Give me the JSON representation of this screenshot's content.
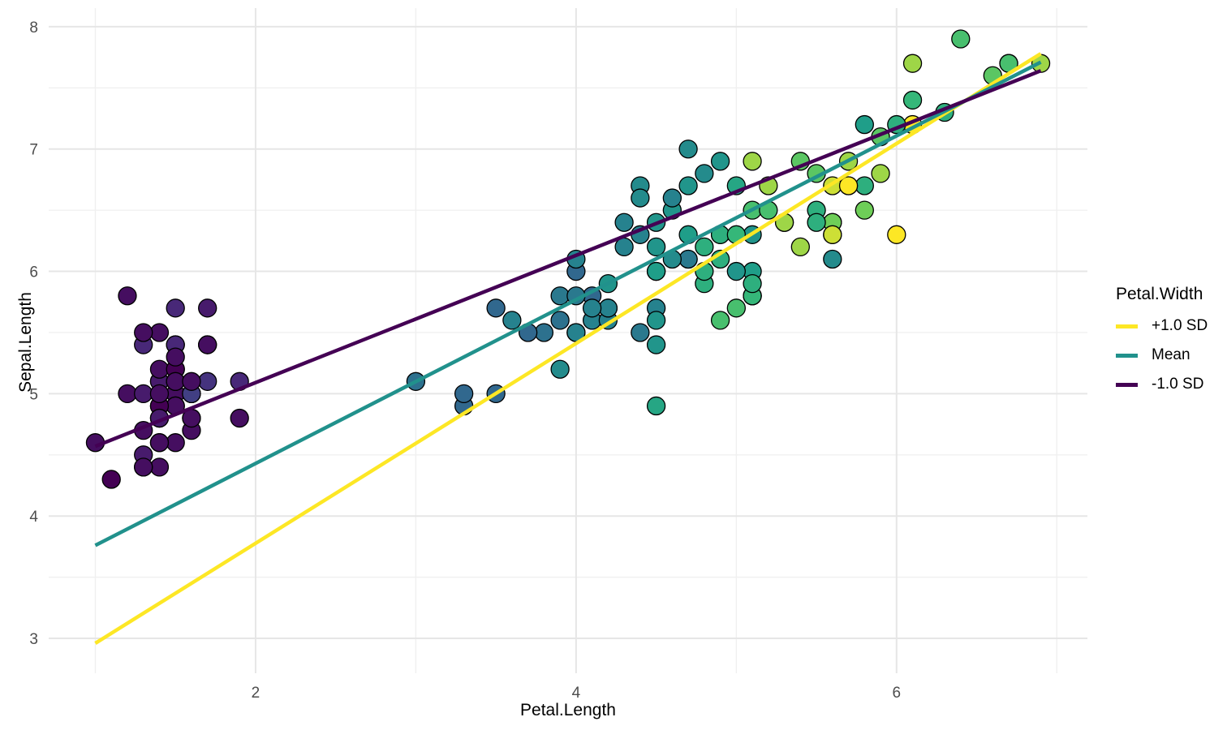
{
  "chart_data": {
    "type": "scatter",
    "title": "",
    "xlabel": "Petal.Length",
    "ylabel": "Sepal.Length",
    "xlim": [
      0.709,
      7.191
    ],
    "ylim": [
      2.715,
      8.152
    ],
    "x_ticks": [
      2,
      4,
      6
    ],
    "y_ticks": [
      3,
      4,
      5,
      6,
      7,
      8
    ],
    "x_minor_ticks": [
      1,
      3,
      5,
      7
    ],
    "y_minor_ticks": [
      3.5,
      4.5,
      5.5,
      6.5,
      7.5
    ],
    "grid": true,
    "legend": {
      "title": "Petal.Width",
      "position": "right",
      "entries": [
        {
          "label": "+1.0 SD",
          "color": "#fde725"
        },
        {
          "label": "Mean",
          "color": "#21918c"
        },
        {
          "label": "-1.0 SD",
          "color": "#440154"
        }
      ]
    },
    "color_scale": {
      "name": "viridis",
      "variable": "Petal.Width",
      "domain": [
        0.1,
        2.5
      ],
      "stops": [
        "#440154",
        "#482878",
        "#3e4a89",
        "#31688e",
        "#26828e",
        "#1f9e89",
        "#35b779",
        "#6ece58",
        "#fde725"
      ]
    },
    "trend_lines": [
      {
        "name": "+1.0 SD",
        "color": "#fde725",
        "x": [
          1.0,
          6.9
        ],
        "y": [
          2.96,
          7.78
        ]
      },
      {
        "name": "Mean",
        "color": "#21918c",
        "x": [
          1.0,
          6.9
        ],
        "y": [
          3.76,
          7.71
        ]
      },
      {
        "name": "-1.0 SD",
        "color": "#440154",
        "x": [
          1.0,
          6.9
        ],
        "y": [
          4.57,
          7.64
        ]
      }
    ],
    "points_columns": [
      "Petal.Length",
      "Sepal.Length",
      "Petal.Width"
    ],
    "points": [
      [
        1.4,
        5.1,
        0.2
      ],
      [
        1.4,
        4.9,
        0.2
      ],
      [
        1.3,
        4.7,
        0.2
      ],
      [
        1.5,
        4.6,
        0.2
      ],
      [
        1.4,
        5.0,
        0.2
      ],
      [
        1.7,
        5.4,
        0.4
      ],
      [
        1.4,
        4.6,
        0.3
      ],
      [
        1.5,
        5.0,
        0.2
      ],
      [
        1.4,
        4.4,
        0.2
      ],
      [
        1.5,
        4.9,
        0.1
      ],
      [
        1.5,
        5.4,
        0.2
      ],
      [
        1.6,
        4.8,
        0.2
      ],
      [
        1.4,
        4.8,
        0.1
      ],
      [
        1.1,
        4.3,
        0.1
      ],
      [
        1.2,
        5.8,
        0.2
      ],
      [
        1.5,
        5.7,
        0.4
      ],
      [
        1.3,
        5.4,
        0.4
      ],
      [
        1.4,
        5.1,
        0.3
      ],
      [
        1.7,
        5.7,
        0.3
      ],
      [
        1.5,
        5.1,
        0.3
      ],
      [
        1.7,
        5.4,
        0.2
      ],
      [
        1.5,
        5.1,
        0.4
      ],
      [
        1.0,
        4.6,
        0.2
      ],
      [
        1.7,
        5.1,
        0.5
      ],
      [
        1.9,
        4.8,
        0.2
      ],
      [
        1.6,
        5.0,
        0.2
      ],
      [
        1.6,
        5.0,
        0.4
      ],
      [
        1.5,
        5.2,
        0.2
      ],
      [
        1.4,
        5.2,
        0.2
      ],
      [
        1.6,
        4.7,
        0.2
      ],
      [
        1.6,
        4.8,
        0.2
      ],
      [
        1.5,
        5.4,
        0.4
      ],
      [
        1.5,
        5.2,
        0.1
      ],
      [
        1.4,
        5.5,
        0.2
      ],
      [
        1.5,
        4.9,
        0.2
      ],
      [
        1.2,
        5.0,
        0.2
      ],
      [
        1.3,
        5.5,
        0.2
      ],
      [
        1.4,
        4.9,
        0.1
      ],
      [
        1.3,
        4.4,
        0.2
      ],
      [
        1.5,
        5.1,
        0.2
      ],
      [
        1.3,
        5.0,
        0.3
      ],
      [
        1.3,
        4.5,
        0.3
      ],
      [
        1.3,
        4.4,
        0.2
      ],
      [
        1.6,
        5.0,
        0.6
      ],
      [
        1.9,
        5.1,
        0.4
      ],
      [
        1.4,
        4.8,
        0.3
      ],
      [
        1.6,
        5.1,
        0.2
      ],
      [
        1.4,
        4.6,
        0.2
      ],
      [
        1.5,
        5.3,
        0.2
      ],
      [
        1.4,
        5.0,
        0.2
      ],
      [
        4.7,
        7.0,
        1.4
      ],
      [
        4.5,
        6.4,
        1.5
      ],
      [
        4.9,
        6.9,
        1.5
      ],
      [
        4.0,
        5.5,
        1.3
      ],
      [
        4.6,
        6.5,
        1.5
      ],
      [
        4.5,
        5.7,
        1.3
      ],
      [
        4.7,
        6.3,
        1.6
      ],
      [
        3.3,
        4.9,
        1.0
      ],
      [
        4.6,
        6.6,
        1.3
      ],
      [
        3.9,
        5.2,
        1.4
      ],
      [
        3.5,
        5.0,
        1.0
      ],
      [
        4.2,
        5.9,
        1.5
      ],
      [
        4.0,
        6.0,
        1.0
      ],
      [
        4.7,
        6.1,
        1.4
      ],
      [
        3.6,
        5.6,
        1.3
      ],
      [
        4.4,
        6.7,
        1.4
      ],
      [
        4.5,
        5.6,
        1.5
      ],
      [
        4.1,
        5.8,
        1.0
      ],
      [
        4.5,
        6.2,
        1.5
      ],
      [
        3.9,
        5.6,
        1.1
      ],
      [
        4.8,
        5.9,
        1.8
      ],
      [
        4.0,
        6.1,
        1.3
      ],
      [
        4.9,
        6.3,
        1.5
      ],
      [
        4.7,
        6.1,
        1.2
      ],
      [
        4.3,
        6.4,
        1.3
      ],
      [
        4.4,
        6.6,
        1.4
      ],
      [
        4.8,
        6.8,
        1.4
      ],
      [
        5.0,
        6.7,
        1.7
      ],
      [
        4.5,
        6.0,
        1.5
      ],
      [
        3.5,
        5.7,
        1.0
      ],
      [
        3.8,
        5.5,
        1.1
      ],
      [
        3.7,
        5.5,
        1.0
      ],
      [
        3.9,
        5.8,
        1.2
      ],
      [
        5.1,
        6.0,
        1.6
      ],
      [
        4.5,
        5.4,
        1.5
      ],
      [
        4.5,
        6.0,
        1.6
      ],
      [
        4.7,
        6.7,
        1.5
      ],
      [
        4.4,
        6.3,
        1.3
      ],
      [
        4.1,
        5.6,
        1.3
      ],
      [
        4.0,
        5.5,
        1.3
      ],
      [
        4.4,
        5.5,
        1.2
      ],
      [
        4.6,
        6.1,
        1.4
      ],
      [
        4.0,
        5.8,
        1.2
      ],
      [
        3.3,
        5.0,
        1.0
      ],
      [
        4.2,
        5.6,
        1.3
      ],
      [
        4.2,
        5.7,
        1.2
      ],
      [
        4.2,
        5.7,
        1.3
      ],
      [
        4.3,
        6.2,
        1.3
      ],
      [
        3.0,
        5.1,
        1.1
      ],
      [
        4.1,
        5.7,
        1.3
      ],
      [
        6.0,
        6.3,
        2.5
      ],
      [
        5.1,
        5.8,
        1.9
      ],
      [
        5.9,
        7.1,
        2.1
      ],
      [
        5.6,
        6.3,
        1.8
      ],
      [
        5.8,
        6.5,
        2.2
      ],
      [
        6.6,
        7.6,
        2.1
      ],
      [
        4.5,
        4.9,
        1.7
      ],
      [
        6.3,
        7.3,
        1.8
      ],
      [
        5.8,
        6.7,
        1.8
      ],
      [
        6.1,
        7.2,
        2.5
      ],
      [
        5.1,
        6.5,
        2.0
      ],
      [
        5.3,
        6.4,
        1.9
      ],
      [
        5.5,
        6.8,
        2.1
      ],
      [
        5.0,
        5.7,
        2.0
      ],
      [
        5.1,
        5.8,
        2.4
      ],
      [
        5.3,
        6.4,
        2.3
      ],
      [
        5.5,
        6.5,
        1.8
      ],
      [
        6.7,
        7.7,
        2.2
      ],
      [
        6.9,
        7.7,
        2.3
      ],
      [
        5.0,
        6.0,
        1.5
      ],
      [
        5.7,
        6.9,
        2.3
      ],
      [
        4.9,
        5.6,
        2.0
      ],
      [
        6.7,
        7.7,
        2.0
      ],
      [
        4.9,
        6.3,
        1.8
      ],
      [
        5.7,
        6.7,
        2.1
      ],
      [
        6.0,
        7.2,
        1.8
      ],
      [
        4.8,
        6.2,
        1.8
      ],
      [
        4.9,
        6.1,
        1.8
      ],
      [
        5.6,
        6.4,
        2.1
      ],
      [
        5.8,
        7.2,
        1.6
      ],
      [
        6.1,
        7.4,
        1.9
      ],
      [
        6.4,
        7.9,
        2.0
      ],
      [
        5.6,
        6.4,
        2.2
      ],
      [
        5.1,
        6.3,
        1.5
      ],
      [
        5.6,
        6.1,
        1.4
      ],
      [
        6.1,
        7.7,
        2.3
      ],
      [
        5.6,
        6.3,
        2.4
      ],
      [
        5.5,
        6.4,
        1.8
      ],
      [
        4.8,
        6.0,
        1.8
      ],
      [
        5.4,
        6.9,
        2.1
      ],
      [
        5.6,
        6.7,
        2.4
      ],
      [
        5.1,
        6.9,
        2.3
      ],
      [
        5.1,
        5.8,
        1.9
      ],
      [
        5.9,
        6.8,
        2.3
      ],
      [
        5.7,
        6.7,
        2.5
      ],
      [
        5.2,
        6.7,
        2.3
      ],
      [
        5.0,
        6.3,
        1.9
      ],
      [
        5.2,
        6.5,
        2.0
      ],
      [
        5.4,
        6.2,
        2.3
      ],
      [
        5.1,
        5.9,
        1.8
      ]
    ]
  },
  "style": {
    "background": "#ffffff",
    "grid_major_color": "#e6e6e6",
    "grid_minor_color": "#f0f0f0",
    "tick_label_color": "#4d4d4d",
    "text_color": "#000000",
    "point_stroke_color": "#000000"
  }
}
